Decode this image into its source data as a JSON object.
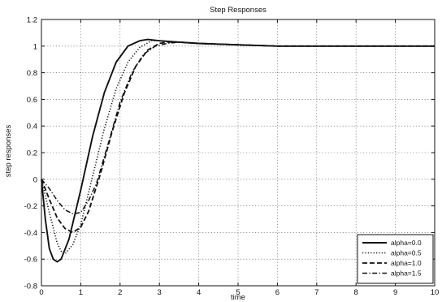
{
  "chart_data": {
    "type": "line",
    "title": "Step Responses",
    "xlabel": "time",
    "ylabel": "step responses",
    "xlim": [
      0,
      10
    ],
    "ylim": [
      -0.8,
      1.2
    ],
    "xticks": [
      "0",
      "1",
      "2",
      "3",
      "4",
      "5",
      "6",
      "7",
      "8",
      "9",
      "10"
    ],
    "yticks": [
      "-0.8",
      "-0.6",
      "-0.4",
      "-0.2",
      "0",
      "0.2",
      "0.4",
      "0.6",
      "0.8",
      "1",
      "1.2"
    ],
    "grid": true,
    "legend_position": "bottom-right",
    "series": [
      {
        "name": "alpha=0.0",
        "style": "solid",
        "x": [
          0,
          0.1,
          0.2,
          0.3,
          0.4,
          0.5,
          0.7,
          1.0,
          1.3,
          1.6,
          1.9,
          2.2,
          2.5,
          2.7,
          3.0,
          3.5,
          4,
          5,
          6,
          7,
          8,
          9,
          10
        ],
        "y": [
          0,
          -0.3,
          -0.52,
          -0.6,
          -0.62,
          -0.6,
          -0.45,
          -0.08,
          0.32,
          0.65,
          0.88,
          1.0,
          1.04,
          1.05,
          1.04,
          1.03,
          1.02,
          1.01,
          1.0,
          1.0,
          1.0,
          1.0,
          1.0
        ]
      },
      {
        "name": "alpha=0.5",
        "style": "dotted",
        "x": [
          0,
          0.2,
          0.4,
          0.5,
          0.6,
          0.8,
          1.0,
          1.3,
          1.6,
          1.9,
          2.2,
          2.5,
          2.8,
          3.0,
          3.5,
          4,
          5,
          6,
          7,
          8,
          9,
          10
        ],
        "y": [
          0,
          -0.25,
          -0.48,
          -0.54,
          -0.56,
          -0.49,
          -0.34,
          0.02,
          0.38,
          0.68,
          0.88,
          0.99,
          1.04,
          1.04,
          1.03,
          1.02,
          1.01,
          1.0,
          1.0,
          1.0,
          1.0,
          1.0
        ]
      },
      {
        "name": "alpha=1.0",
        "style": "dashed",
        "x": [
          0,
          0.2,
          0.4,
          0.6,
          0.8,
          1.0,
          1.2,
          1.5,
          1.8,
          2.1,
          2.4,
          2.7,
          3.0,
          3.2,
          3.5,
          4,
          5,
          6,
          7,
          8,
          9,
          10
        ],
        "y": [
          0,
          -0.15,
          -0.29,
          -0.37,
          -0.4,
          -0.36,
          -0.24,
          0.04,
          0.36,
          0.64,
          0.85,
          0.97,
          1.02,
          1.03,
          1.03,
          1.02,
          1.01,
          1.0,
          1.0,
          1.0,
          1.0,
          1.0
        ]
      },
      {
        "name": "alpha=1.5",
        "style": "dashdot",
        "x": [
          0,
          0.2,
          0.4,
          0.6,
          0.8,
          1.0,
          1.2,
          1.4,
          1.7,
          2.0,
          2.3,
          2.6,
          2.9,
          3.2,
          3.5,
          4,
          5,
          6,
          7,
          8,
          9,
          10
        ],
        "y": [
          0,
          -0.07,
          -0.16,
          -0.23,
          -0.26,
          -0.25,
          -0.16,
          -0.03,
          0.27,
          0.58,
          0.8,
          0.94,
          1.0,
          1.02,
          1.03,
          1.02,
          1.01,
          1.0,
          1.0,
          1.0,
          1.0,
          1.0
        ]
      }
    ]
  }
}
